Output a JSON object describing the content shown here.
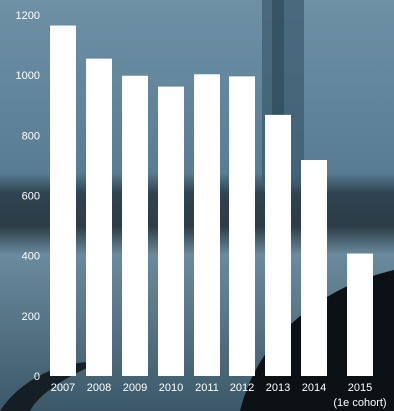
{
  "chart_data": {
    "type": "bar",
    "title": "",
    "xlabel": "",
    "ylabel": "",
    "categories": [
      "2007",
      "2008",
      "2009",
      "2010",
      "2011",
      "2012",
      "2013",
      "2014",
      "2015\n(1e cohort)"
    ],
    "values": [
      1165,
      1055,
      998,
      962,
      1003,
      996,
      868,
      718,
      407
    ],
    "ylim": [
      0,
      1200
    ],
    "yticks": [
      0,
      200,
      400,
      600,
      800,
      1000,
      1200
    ],
    "grid": false,
    "legend": "none"
  },
  "colors": {
    "bar": "#ffffff",
    "text": "#ffffff",
    "background_top": "#6a8ea3",
    "background_bottom": "#20323d"
  }
}
